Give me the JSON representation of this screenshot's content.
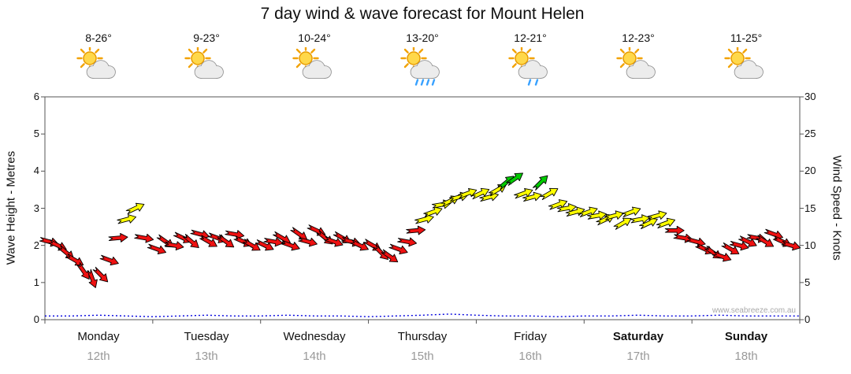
{
  "title": "7 day wind & wave forecast for Mount Helen",
  "watermark": "www.seabreeze.com.au",
  "days": [
    {
      "name": "Monday",
      "date": "12th",
      "temp": "8-26°",
      "icon": "sun-cloud"
    },
    {
      "name": "Tuesday",
      "date": "13th",
      "temp": "9-23°",
      "icon": "sun-cloud"
    },
    {
      "name": "Wednesday",
      "date": "14th",
      "temp": "10-24°",
      "icon": "sun-cloud"
    },
    {
      "name": "Thursday",
      "date": "15th",
      "temp": "13-20°",
      "icon": "sun-cloud-showers"
    },
    {
      "name": "Friday",
      "date": "16th",
      "temp": "12-21°",
      "icon": "sun-cloud-rain"
    },
    {
      "name": "Saturday",
      "date": "17th",
      "temp": "12-23°",
      "icon": "sun-cloud"
    },
    {
      "name": "Sunday",
      "date": "18th",
      "temp": "11-25°",
      "icon": "sun-cloud"
    }
  ],
  "chart_data": {
    "type": "scatter",
    "title": "7 day wind & wave forecast for Mount Helen",
    "description": "Wind speed shown as colored direction arrows (knots, right axis); wave height as blue dotted line (metres, left axis).",
    "left_axis": {
      "label": "Wave Height - Metres",
      "min": 0,
      "max": 6,
      "ticks": [
        0,
        1,
        2,
        3,
        4,
        5,
        6
      ]
    },
    "right_axis": {
      "label": "Wind Speed - Knots",
      "min": 0,
      "max": 30,
      "ticks": [
        0,
        5,
        10,
        15,
        20,
        25,
        30
      ]
    },
    "x_axis": {
      "days": [
        "Monday",
        "Tuesday",
        "Wednesday",
        "Thursday",
        "Friday",
        "Saturday",
        "Sunday"
      ],
      "dates": [
        "12th",
        "13th",
        "14th",
        "15th",
        "16th",
        "17th",
        "18th"
      ]
    },
    "colors": {
      "wind_low": "#ee1111",
      "wind_mid": "#ffff00",
      "wind_high": "#00cc00",
      "wave_line": "#0000dd"
    },
    "thresholds": {
      "yellow_min": 12.5,
      "green_min": 18.2
    },
    "wind": {
      "offsets": [
        0.04,
        0.12,
        0.2,
        0.28,
        0.36,
        0.44,
        0.52,
        0.6,
        0.68,
        0.76,
        0.84,
        0.92
      ],
      "days": [
        {
          "knots": [
            10.5,
            10,
            9,
            8,
            6.5,
            5.5,
            6,
            8,
            11,
            13.5,
            15,
            11
          ],
          "dir": [
            15,
            25,
            40,
            30,
            55,
            70,
            45,
            20,
            -5,
            -15,
            -25,
            10
          ]
        },
        {
          "knots": [
            9.5,
            10.5,
            10,
            11,
            10.5,
            11.5,
            10.5,
            11,
            10.5,
            11.5,
            10.5,
            10
          ],
          "dir": [
            20,
            35,
            10,
            25,
            40,
            15,
            30,
            20,
            35,
            10,
            25,
            30
          ]
        },
        {
          "knots": [
            10,
            10.5,
            11,
            10,
            11.5,
            10.5,
            12,
            11,
            10.5,
            11,
            10.5,
            10
          ],
          "dir": [
            25,
            10,
            30,
            20,
            35,
            15,
            25,
            40,
            20,
            30,
            15,
            25
          ]
        },
        {
          "knots": [
            10,
            9,
            8.5,
            9.5,
            10.5,
            12,
            13.5,
            14.5,
            15.5,
            16,
            16.5,
            17
          ],
          "dir": [
            30,
            45,
            35,
            20,
            10,
            -5,
            -15,
            -20,
            -10,
            -25,
            -15,
            -20
          ]
        },
        {
          "knots": [
            17,
            16.5,
            17.5,
            18.5,
            19,
            17,
            16.5,
            18.5,
            17,
            15.5,
            15,
            14.5
          ],
          "dir": [
            -25,
            -15,
            -30,
            -40,
            -35,
            -20,
            -15,
            -45,
            -30,
            -20,
            -10,
            -15
          ]
        },
        {
          "knots": [
            14.5,
            14,
            13.5,
            14,
            13,
            14.5,
            13.5,
            13,
            14,
            13,
            12,
            11
          ],
          "dir": [
            -20,
            -10,
            -25,
            -15,
            -30,
            -20,
            -10,
            -25,
            -15,
            -20,
            0,
            10
          ]
        },
        {
          "knots": [
            10.5,
            9.5,
            9,
            8.5,
            9.5,
            10,
            10.5,
            11,
            10.5,
            11.5,
            10.5,
            10
          ],
          "dir": [
            15,
            25,
            35,
            20,
            30,
            15,
            25,
            10,
            30,
            20,
            25,
            15
          ]
        }
      ]
    },
    "wave": {
      "t_step": 0.25,
      "metres": [
        0.1,
        0.1,
        0.12,
        0.1,
        0.08,
        0.1,
        0.12,
        0.1,
        0.1,
        0.12,
        0.1,
        0.1,
        0.08,
        0.1,
        0.12,
        0.15,
        0.12,
        0.1,
        0.1,
        0.08,
        0.1,
        0.1,
        0.12,
        0.1,
        0.1,
        0.12,
        0.1,
        0.1,
        0.1
      ]
    }
  }
}
